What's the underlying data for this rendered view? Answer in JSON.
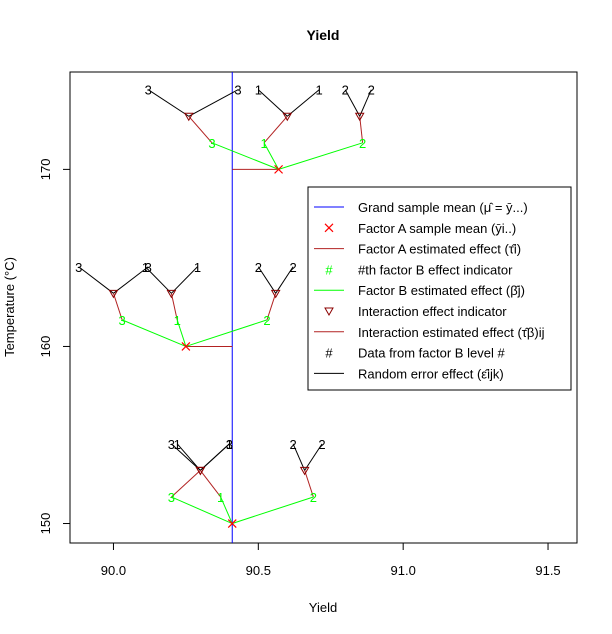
{
  "chart_data": {
    "type": "scatter",
    "title": "Yield",
    "xlabel": "Yield",
    "ylabel": "Temperature (°C)",
    "xlim": [
      89.85,
      91.6
    ],
    "ylim": [
      148.9,
      175.5
    ],
    "xticks": [
      "90.0",
      "90.5",
      "91.0",
      "91.5"
    ],
    "xtick_values": [
      90.0,
      90.5,
      91.0,
      91.5
    ],
    "yticks": [
      "150",
      "160",
      "170"
    ],
    "ytick_values": [
      150,
      160,
      170
    ],
    "grand_mean": 90.41,
    "factor_a_means": [
      {
        "temperature": 170,
        "yield": 90.57
      },
      {
        "temperature": 160,
        "yield": 90.25
      },
      {
        "temperature": 150,
        "yield": 90.41
      }
    ],
    "factor_b_effects": [
      {
        "from": [
          90.57,
          170
        ],
        "to": [
          90.34,
          171.5
        ],
        "label": "3"
      },
      {
        "from": [
          90.57,
          170
        ],
        "to": [
          90.52,
          171.5
        ],
        "label": "1"
      },
      {
        "from": [
          90.57,
          170
        ],
        "to": [
          90.86,
          171.5
        ],
        "label": "2"
      },
      {
        "from": [
          90.25,
          160
        ],
        "to": [
          90.03,
          161.5
        ],
        "label": "3"
      },
      {
        "from": [
          90.25,
          160
        ],
        "to": [
          90.22,
          161.5
        ],
        "label": "1"
      },
      {
        "from": [
          90.25,
          160
        ],
        "to": [
          90.53,
          161.5
        ],
        "label": "2"
      },
      {
        "from": [
          90.41,
          150
        ],
        "to": [
          90.2,
          151.5
        ],
        "label": "3"
      },
      {
        "from": [
          90.41,
          150
        ],
        "to": [
          90.37,
          151.5
        ],
        "label": "1"
      },
      {
        "from": [
          90.41,
          150
        ],
        "to": [
          90.69,
          151.5
        ],
        "label": "2"
      }
    ],
    "interaction_indicators": [
      {
        "from": [
          90.34,
          171.5
        ],
        "to": [
          90.26,
          173
        ]
      },
      {
        "from": [
          90.52,
          171.5
        ],
        "to": [
          90.6,
          173
        ]
      },
      {
        "from": [
          90.86,
          171.5
        ],
        "to": [
          90.85,
          173
        ]
      },
      {
        "from": [
          90.03,
          161.5
        ],
        "to": [
          90.0,
          163
        ]
      },
      {
        "from": [
          90.22,
          161.5
        ],
        "to": [
          90.2,
          163
        ]
      },
      {
        "from": [
          90.53,
          161.5
        ],
        "to": [
          90.56,
          163
        ]
      },
      {
        "from": [
          90.2,
          151.5
        ],
        "to": [
          90.3,
          153
        ]
      },
      {
        "from": [
          90.37,
          151.5
        ],
        "to": [
          90.3,
          153
        ]
      },
      {
        "from": [
          90.69,
          151.5
        ],
        "to": [
          90.66,
          153
        ]
      }
    ],
    "data_points": [
      {
        "from": [
          90.26,
          173
        ],
        "to": [
          90.12,
          174.5
        ],
        "label": "3"
      },
      {
        "from": [
          90.26,
          173
        ],
        "to": [
          90.43,
          174.5
        ],
        "label": "3"
      },
      {
        "from": [
          90.6,
          173
        ],
        "to": [
          90.5,
          174.5
        ],
        "label": "1"
      },
      {
        "from": [
          90.6,
          173
        ],
        "to": [
          90.71,
          174.5
        ],
        "label": "1"
      },
      {
        "from": [
          90.85,
          173
        ],
        "to": [
          90.8,
          174.5
        ],
        "label": "2"
      },
      {
        "from": [
          90.85,
          173
        ],
        "to": [
          90.89,
          174.5
        ],
        "label": "2"
      },
      {
        "from": [
          90.0,
          163
        ],
        "to": [
          89.88,
          164.5
        ],
        "label": "3"
      },
      {
        "from": [
          90.0,
          163
        ],
        "to": [
          90.12,
          164.5
        ],
        "label": "3"
      },
      {
        "from": [
          90.2,
          163
        ],
        "to": [
          90.11,
          164.5
        ],
        "label": "1"
      },
      {
        "from": [
          90.2,
          163
        ],
        "to": [
          90.29,
          164.5
        ],
        "label": "1"
      },
      {
        "from": [
          90.56,
          163
        ],
        "to": [
          90.5,
          164.5
        ],
        "label": "2"
      },
      {
        "from": [
          90.56,
          163
        ],
        "to": [
          90.62,
          164.5
        ],
        "label": "2"
      },
      {
        "from": [
          90.3,
          153
        ],
        "to": [
          90.2,
          154.5
        ],
        "label": "3"
      },
      {
        "from": [
          90.3,
          153
        ],
        "to": [
          90.4,
          154.5
        ],
        "label": "3"
      },
      {
        "from": [
          90.3,
          153
        ],
        "to": [
          90.22,
          154.5
        ],
        "label": "1"
      },
      {
        "from": [
          90.3,
          153
        ],
        "to": [
          90.4,
          154.5
        ],
        "label": "1"
      },
      {
        "from": [
          90.66,
          153
        ],
        "to": [
          90.62,
          154.5
        ],
        "label": "2"
      },
      {
        "from": [
          90.66,
          153
        ],
        "to": [
          90.72,
          154.5
        ],
        "label": "2"
      }
    ],
    "legend": {
      "position": "right",
      "entries": [
        {
          "label": "Grand sample mean (μ̂ = ȳ...)",
          "symbol": "line",
          "color": "#0000ff"
        },
        {
          "label": "Factor A sample mean (ȳi..)",
          "symbol": "x",
          "color": "#ff0000"
        },
        {
          "label": "Factor A estimated effect (τ̂i)",
          "symbol": "line",
          "color": "#b22222"
        },
        {
          "label": "#th factor B effect indicator",
          "symbol": "#",
          "color": "#00ff00"
        },
        {
          "label": "Factor B estimated effect (β̂j)",
          "symbol": "line",
          "color": "#00ff00"
        },
        {
          "label": "Interaction effect indicator",
          "symbol": "triangle",
          "color": "#8b0000"
        },
        {
          "label": "Interaction estimated effect (τ̂β)ij",
          "symbol": "line",
          "color": "#b22222"
        },
        {
          "label": "Data from factor B level #",
          "symbol": "#",
          "color": "#000000"
        },
        {
          "label": "Random error effect (ε̂ijk)",
          "symbol": "line",
          "color": "#000000"
        }
      ]
    },
    "colors": {
      "grand_mean": "#0000ff",
      "factor_a_mean": "#ff0000",
      "factor_a_effect": "#b22222",
      "factor_b": "#00ff00",
      "interaction_marker": "#8b0000",
      "interaction_effect": "#b22222",
      "data": "#000000"
    }
  }
}
